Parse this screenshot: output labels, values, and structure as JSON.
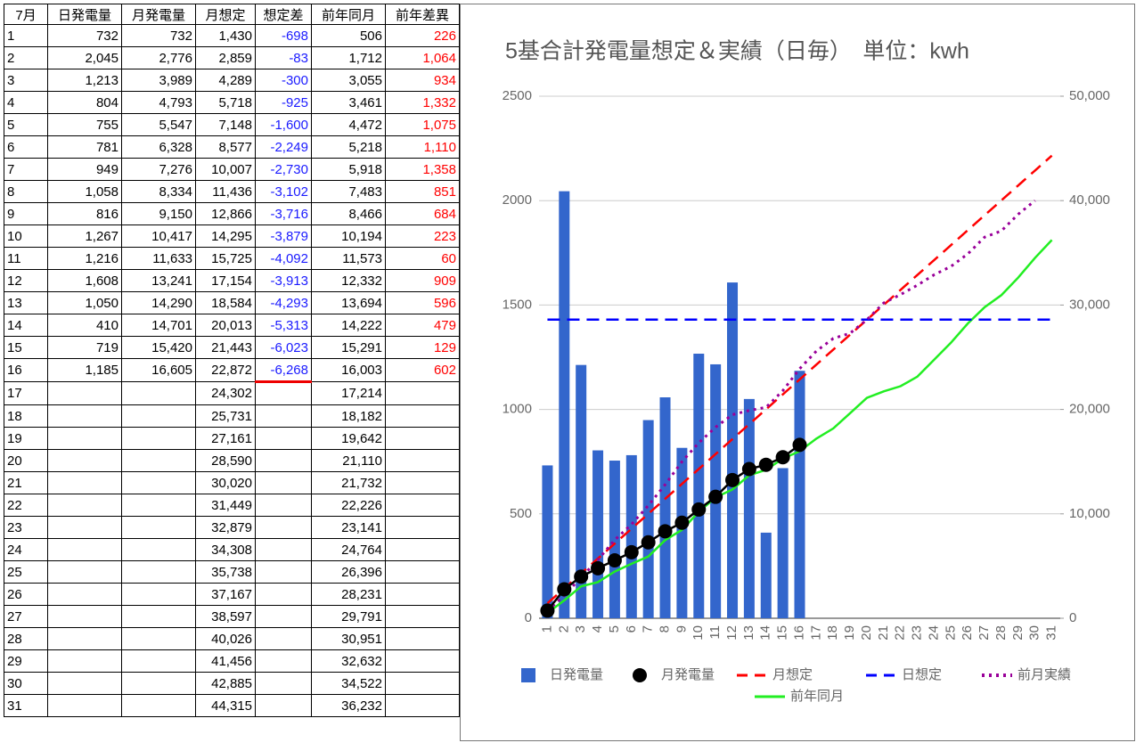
{
  "table": {
    "headers": [
      "7月",
      "日発電量",
      "月発電量",
      "月想定",
      "想定差",
      "前年同月",
      "前年差異"
    ],
    "rows": [
      [
        "1",
        "732",
        "732",
        "1,430",
        "-698",
        "506",
        "226"
      ],
      [
        "2",
        "2,045",
        "2,776",
        "2,859",
        "-83",
        "1,712",
        "1,064"
      ],
      [
        "3",
        "1,213",
        "3,989",
        "4,289",
        "-300",
        "3,055",
        "934"
      ],
      [
        "4",
        "804",
        "4,793",
        "5,718",
        "-925",
        "3,461",
        "1,332"
      ],
      [
        "5",
        "755",
        "5,547",
        "7,148",
        "-1,600",
        "4,472",
        "1,075"
      ],
      [
        "6",
        "781",
        "6,328",
        "8,577",
        "-2,249",
        "5,218",
        "1,110"
      ],
      [
        "7",
        "949",
        "7,276",
        "10,007",
        "-2,730",
        "5,918",
        "1,358"
      ],
      [
        "8",
        "1,058",
        "8,334",
        "11,436",
        "-3,102",
        "7,483",
        "851"
      ],
      [
        "9",
        "816",
        "9,150",
        "12,866",
        "-3,716",
        "8,466",
        "684"
      ],
      [
        "10",
        "1,267",
        "10,417",
        "14,295",
        "-3,879",
        "10,194",
        "223"
      ],
      [
        "11",
        "1,216",
        "11,633",
        "15,725",
        "-4,092",
        "11,573",
        "60"
      ],
      [
        "12",
        "1,608",
        "13,241",
        "17,154",
        "-3,913",
        "12,332",
        "909"
      ],
      [
        "13",
        "1,050",
        "14,290",
        "18,584",
        "-4,293",
        "13,694",
        "596"
      ],
      [
        "14",
        "410",
        "14,701",
        "20,013",
        "-5,313",
        "14,222",
        "479"
      ],
      [
        "15",
        "719",
        "15,420",
        "21,443",
        "-6,023",
        "15,291",
        "129"
      ],
      [
        "16",
        "1,185",
        "16,605",
        "22,872",
        "-6,268",
        "16,003",
        "602"
      ],
      [
        "17",
        null,
        null,
        "24,302",
        null,
        "17,214",
        null
      ],
      [
        "18",
        null,
        null,
        "25,731",
        null,
        "18,182",
        null
      ],
      [
        "19",
        null,
        null,
        "27,161",
        null,
        "19,642",
        null
      ],
      [
        "20",
        null,
        null,
        "28,590",
        null,
        "21,110",
        null
      ],
      [
        "21",
        null,
        null,
        "30,020",
        null,
        "21,732",
        null
      ],
      [
        "22",
        null,
        null,
        "31,449",
        null,
        "22,226",
        null
      ],
      [
        "23",
        null,
        null,
        "32,879",
        null,
        "23,141",
        null
      ],
      [
        "24",
        null,
        null,
        "34,308",
        null,
        "24,764",
        null
      ],
      [
        "25",
        null,
        null,
        "35,738",
        null,
        "26,396",
        null
      ],
      [
        "26",
        null,
        null,
        "37,167",
        null,
        "28,231",
        null
      ],
      [
        "27",
        null,
        null,
        "38,597",
        null,
        "29,791",
        null
      ],
      [
        "28",
        null,
        null,
        "40,026",
        null,
        "30,951",
        null
      ],
      [
        "29",
        null,
        null,
        "41,456",
        null,
        "32,632",
        null
      ],
      [
        "30",
        null,
        null,
        "42,885",
        null,
        "34,522",
        null
      ],
      [
        "31",
        null,
        null,
        "44,315",
        null,
        "36,232",
        null
      ]
    ]
  },
  "chart_data": {
    "type": "combo",
    "title": "5基合計発電量想定＆実績（日毎）　単位：kwh",
    "categories": [
      1,
      2,
      3,
      4,
      5,
      6,
      7,
      8,
      9,
      10,
      11,
      12,
      13,
      14,
      15,
      16,
      17,
      18,
      19,
      20,
      21,
      22,
      23,
      24,
      25,
      26,
      27,
      28,
      29,
      30,
      31
    ],
    "ylim": [
      0,
      2500
    ],
    "yticks": [
      0,
      500,
      1000,
      1500,
      2000,
      2500
    ],
    "y2lim": [
      0,
      50000
    ],
    "y2ticks": [
      0,
      {
        "value": 10000,
        "label": "10,000"
      },
      {
        "value": 20000,
        "label": "20,000"
      },
      {
        "value": 30000,
        "label": "30,000"
      },
      {
        "value": 40000,
        "label": "40,000"
      },
      {
        "value": 50000,
        "label": "50,000"
      }
    ],
    "grid": true,
    "legend": "bottom",
    "series": [
      {
        "name": "日発電量",
        "type": "bar",
        "color": "#3366cc",
        "values": [
          732,
          2045,
          1213,
          804,
          755,
          781,
          949,
          1058,
          816,
          1267,
          1216,
          1608,
          1050,
          410,
          719,
          1185,
          null,
          null,
          null,
          null,
          null,
          null,
          null,
          null,
          null,
          null,
          null,
          null,
          null,
          null,
          null
        ]
      },
      {
        "name": "月発電量",
        "type": "marker-line",
        "axis": "y2",
        "color": "#000000",
        "values": [
          732,
          2776,
          3989,
          4793,
          5547,
          6328,
          7276,
          8334,
          9150,
          10417,
          11633,
          13241,
          14290,
          14701,
          15420,
          16605,
          null,
          null,
          null,
          null,
          null,
          null,
          null,
          null,
          null,
          null,
          null,
          null,
          null,
          null,
          null
        ]
      },
      {
        "name": "月想定",
        "type": "line",
        "dash": "dashed",
        "axis": "y2",
        "color": "#ff0000",
        "values": [
          1430,
          2859,
          4289,
          5718,
          7148,
          8577,
          10007,
          11436,
          12866,
          14295,
          15725,
          17154,
          18584,
          20013,
          21443,
          22872,
          24302,
          25731,
          27161,
          28590,
          30020,
          31449,
          32879,
          34308,
          35738,
          37167,
          38597,
          40026,
          41456,
          42885,
          44315
        ]
      },
      {
        "name": "日想定",
        "type": "line",
        "dash": "dashed",
        "color": "#0000ff",
        "values": [
          1430,
          1430,
          1430,
          1430,
          1430,
          1430,
          1430,
          1430,
          1430,
          1430,
          1430,
          1430,
          1430,
          1430,
          1430,
          1430,
          1430,
          1430,
          1430,
          1430,
          1430,
          1430,
          1430,
          1430,
          1430,
          1430,
          1430,
          1430,
          1430,
          1430,
          1430
        ]
      },
      {
        "name": "前月実績",
        "type": "line",
        "dash": "dotted",
        "axis": "y2",
        "color": "#990099",
        "values": [
          700,
          2200,
          3900,
          5600,
          7500,
          9000,
          10800,
          12800,
          15000,
          16800,
          18300,
          19500,
          19900,
          20200,
          21800,
          23900,
          25600,
          26800,
          27300,
          28600,
          30200,
          31000,
          31900,
          32900,
          33700,
          34900,
          36500,
          37100,
          38700,
          40000,
          null
        ]
      },
      {
        "name": "前年同月",
        "type": "line",
        "axis": "y2",
        "color": "#22ee22",
        "values": [
          506,
          1712,
          3055,
          3461,
          4472,
          5218,
          5918,
          7483,
          8466,
          10194,
          11573,
          12332,
          13694,
          14222,
          15291,
          16003,
          17214,
          18182,
          19642,
          21110,
          21732,
          22226,
          23141,
          24764,
          26396,
          28231,
          29791,
          30951,
          32632,
          34522,
          36232
        ]
      }
    ]
  }
}
